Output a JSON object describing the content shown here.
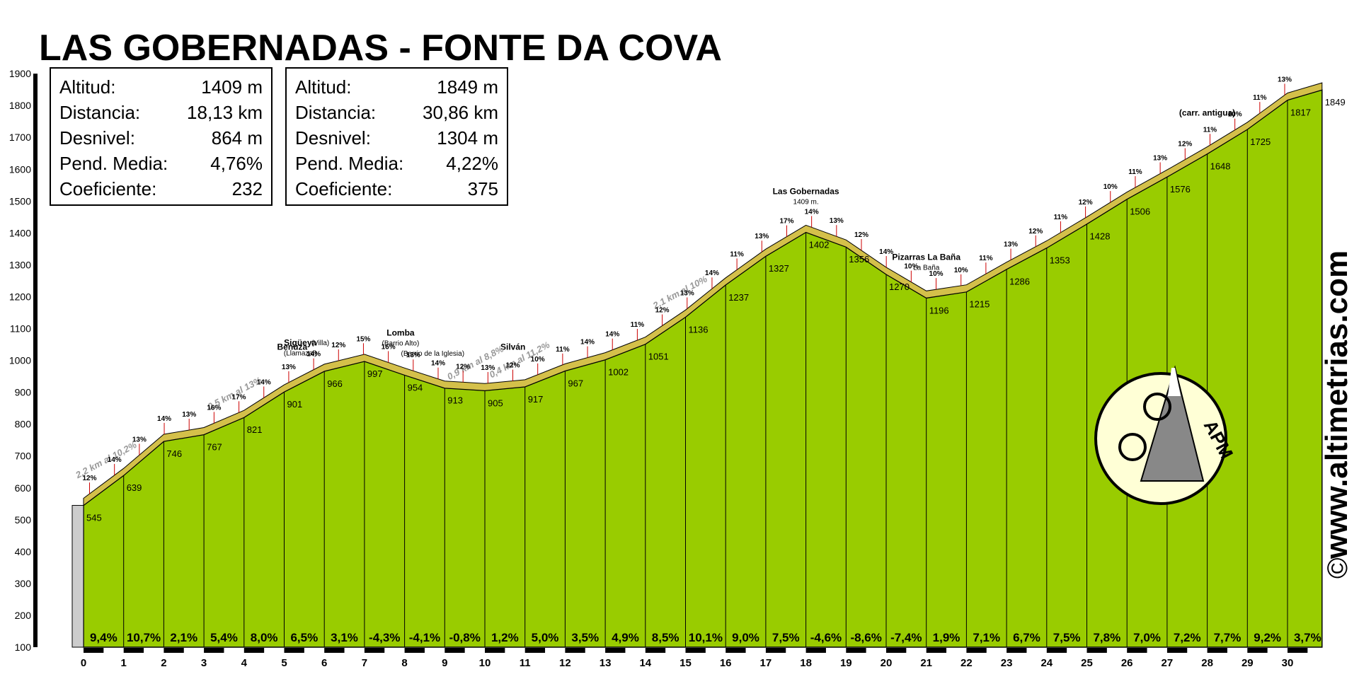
{
  "title": "LAS GOBERNADAS - FONTE DA COVA",
  "stats": [
    {
      "rows": [
        {
          "label": "Altitud:",
          "value": "1409 m"
        },
        {
          "label": "Distancia:",
          "value": "18,13 km"
        },
        {
          "label": "Desnivel:",
          "value": "864 m"
        },
        {
          "label": "Pend. Media:",
          "value": "4,76%"
        },
        {
          "label": "Coeficiente:",
          "value": "232"
        }
      ]
    },
    {
      "rows": [
        {
          "label": "Altitud:",
          "value": "1849 m"
        },
        {
          "label": "Distancia:",
          "value": "30,86 km"
        },
        {
          "label": "Desnivel:",
          "value": "1304 m"
        },
        {
          "label": "Pend. Media:",
          "value": "4,22%"
        },
        {
          "label": "Coeficiente:",
          "value": "375"
        }
      ]
    }
  ],
  "watermark": "www.altimetrias.com",
  "copyright_symbol": "©",
  "logo_text": "APM",
  "colors": {
    "fill": "#99cc00",
    "ridge": "#d4c04a",
    "steep": "#b5552a",
    "axis": "#000000"
  },
  "chart_data": {
    "type": "area",
    "xlabel": "",
    "ylabel": "",
    "xlim": [
      0,
      30.86
    ],
    "ylim": [
      100,
      1900
    ],
    "y_ticks": [
      100,
      200,
      300,
      400,
      500,
      600,
      700,
      800,
      900,
      1000,
      1100,
      1200,
      1300,
      1400,
      1500,
      1600,
      1700,
      1800,
      1900
    ],
    "x_ticks": [
      0,
      1,
      2,
      3,
      4,
      5,
      6,
      7,
      8,
      9,
      10,
      11,
      12,
      13,
      14,
      15,
      16,
      17,
      18,
      19,
      20,
      21,
      22,
      23,
      24,
      25,
      26,
      27,
      28,
      29,
      30
    ],
    "profile": [
      {
        "x": 0,
        "y": 545
      },
      {
        "x": 1,
        "y": 639
      },
      {
        "x": 2,
        "y": 746
      },
      {
        "x": 3,
        "y": 767
      },
      {
        "x": 4,
        "y": 821
      },
      {
        "x": 5,
        "y": 901
      },
      {
        "x": 6,
        "y": 966
      },
      {
        "x": 7,
        "y": 997
      },
      {
        "x": 8,
        "y": 954
      },
      {
        "x": 9,
        "y": 913
      },
      {
        "x": 10,
        "y": 905
      },
      {
        "x": 11,
        "y": 917
      },
      {
        "x": 12,
        "y": 967
      },
      {
        "x": 13,
        "y": 1002
      },
      {
        "x": 14,
        "y": 1051
      },
      {
        "x": 15,
        "y": 1136
      },
      {
        "x": 16,
        "y": 1237
      },
      {
        "x": 17,
        "y": 1327
      },
      {
        "x": 18,
        "y": 1402
      },
      {
        "x": 19,
        "y": 1356
      },
      {
        "x": 20,
        "y": 1270
      },
      {
        "x": 21,
        "y": 1196
      },
      {
        "x": 22,
        "y": 1215
      },
      {
        "x": 23,
        "y": 1286
      },
      {
        "x": 24,
        "y": 1353
      },
      {
        "x": 25,
        "y": 1428
      },
      {
        "x": 26,
        "y": 1506
      },
      {
        "x": 27,
        "y": 1576
      },
      {
        "x": 28,
        "y": 1648
      },
      {
        "x": 29,
        "y": 1725
      },
      {
        "x": 30,
        "y": 1817
      },
      {
        "x": 30.86,
        "y": 1849
      }
    ],
    "segment_gradients": [
      "9,4%",
      "10,7%",
      "2,1%",
      "5,4%",
      "8,0%",
      "6,5%",
      "3,1%",
      "-4,3%",
      "-4,1%",
      "-0,8%",
      "1,2%",
      "5,0%",
      "3,5%",
      "4,9%",
      "8,5%",
      "10,1%",
      "9,0%",
      "7,5%",
      "-4,6%",
      "-8,6%",
      "-7,4%",
      "1,9%",
      "7,1%",
      "6,7%",
      "7,5%",
      "7,8%",
      "7,0%",
      "7,2%",
      "7,7%",
      "9,2%",
      "3,7%"
    ],
    "places": [
      {
        "x": 5.4,
        "name": "Sigüeya",
        "sub": "(Llamazal)"
      },
      {
        "x": 5.9,
        "name": "",
        "sub": "(Villa)"
      },
      {
        "x": 7.9,
        "name": "Lomba",
        "sub": "(Barrio Alto)"
      },
      {
        "x": 8.7,
        "name": "",
        "sub": "(Barrio de la Iglesia)"
      },
      {
        "x": 10.7,
        "name": "Silván",
        "sub": ""
      },
      {
        "x": 18.0,
        "name": "Las Gobernadas",
        "sub": "1409 m."
      },
      {
        "x": 21.0,
        "name": "Pizarras La Baña",
        "sub": "La Baña"
      },
      {
        "x": 5.2,
        "name": "Benuza",
        "sub": ""
      },
      {
        "x": 28.0,
        "name": "(carr. antigua)",
        "sub": ""
      }
    ],
    "slope_notes": [
      {
        "x": 0.6,
        "text": "2,2 km al 10,2%"
      },
      {
        "x": 3.8,
        "text": "0,5 km al 13%"
      },
      {
        "x": 9.8,
        "text": "0,9 km al 8,8%"
      },
      {
        "x": 10.9,
        "text": "0,4 km al 11,2%"
      },
      {
        "x": 14.9,
        "text": "2,1 km al 10%"
      }
    ],
    "peak_labels": [
      "12%",
      "14%",
      "13%",
      "14%",
      "13%",
      "16%",
      "17%",
      "14%",
      "13%",
      "14%",
      "12%",
      "15%",
      "16%",
      "13%",
      "14%",
      "12%",
      "13%",
      "12%",
      "10%",
      "11%",
      "14%",
      "14%",
      "11%",
      "12%",
      "13%",
      "14%",
      "11%",
      "13%",
      "17%",
      "14%",
      "13%",
      "12%",
      "14%",
      "10%",
      "10%",
      "10%",
      "11%",
      "13%",
      "12%",
      "11%",
      "12%",
      "10%",
      "11%",
      "13%",
      "12%",
      "11%",
      "10%",
      "11%",
      "13%"
    ]
  }
}
